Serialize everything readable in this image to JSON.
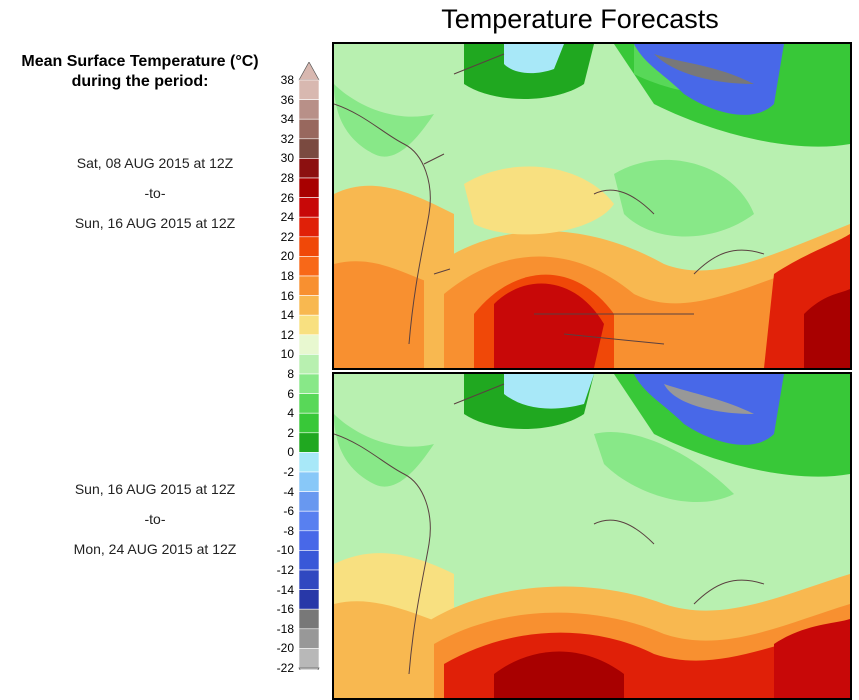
{
  "title": "Temperature Forecasts",
  "legend": {
    "heading_line1": "Mean Surface Temperature (°C)",
    "heading_line2": "during the period:",
    "ticks": [
      "38",
      "36",
      "34",
      "32",
      "30",
      "28",
      "26",
      "24",
      "22",
      "20",
      "18",
      "16",
      "14",
      "12",
      "10",
      "8",
      "6",
      "4",
      "2",
      "0",
      "-2",
      "-4",
      "-6",
      "-8",
      "-10",
      "-12",
      "-14",
      "-16",
      "-18",
      "-20",
      "-22"
    ],
    "colors": [
      "#d8b8b0",
      "#b89088",
      "#98685e",
      "#7a4a40",
      "#8c1010",
      "#a80000",
      "#c80808",
      "#e02008",
      "#f04808",
      "#f86818",
      "#f89030",
      "#f8b850",
      "#f8e080",
      "#e8f8d0",
      "#b8f0b0",
      "#88e888",
      "#58d858",
      "#38c838",
      "#20a820",
      "#a8e8f8",
      "#88c8f8",
      "#6898f0",
      "#5880f0",
      "#4868e8",
      "#3858d8",
      "#3048c0",
      "#2838a8",
      "#787878",
      "#989898",
      "#b8b8b8"
    ]
  },
  "periods": [
    {
      "start": "Sat, 08 AUG 2015 at 12Z",
      "sep": "-to-",
      "end": "Sun, 16 AUG 2015 at 12Z"
    },
    {
      "start": "Sun, 16 AUG 2015 at 12Z",
      "sep": "-to-",
      "end": "Mon, 24 AUG 2015 at 12Z"
    }
  ]
}
